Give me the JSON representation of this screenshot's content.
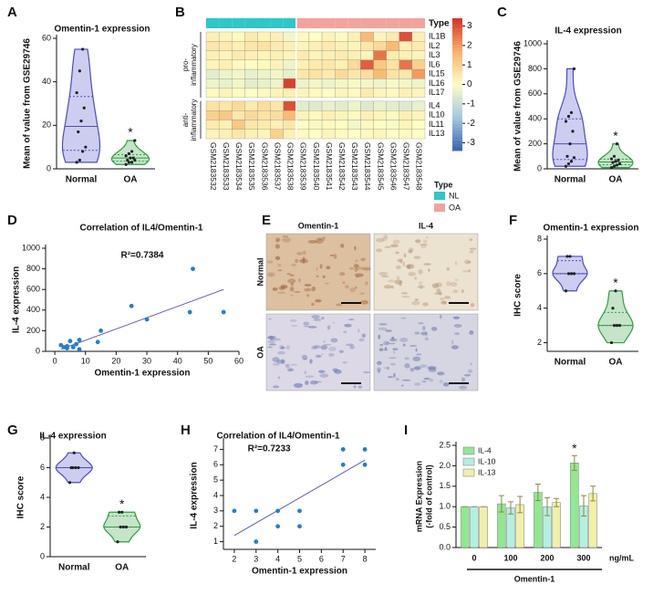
{
  "chart_data": [
    {
      "panel": "A",
      "type": "violin",
      "title": "Omentin-1 expression",
      "ylabel": "Mean of value from GSE29746",
      "categories": [
        "Normal",
        "OA"
      ],
      "values": [
        [
          3,
          4,
          8,
          10,
          17,
          22,
          28,
          35,
          45,
          55
        ],
        [
          2,
          3,
          3,
          4,
          4,
          5,
          5,
          6,
          7,
          8,
          13
        ]
      ],
      "colors": [
        "#4b4bc8",
        "#2e9e3e"
      ],
      "ylim": [
        0,
        60
      ],
      "yticks": [
        0,
        20,
        40,
        60
      ],
      "annotation": "*"
    },
    {
      "panel": "B",
      "type": "heatmap",
      "columns": [
        "GSM2183532",
        "GSM2183533",
        "GSM2183534",
        "GSM2183535",
        "GSM2183536",
        "GSM2183537",
        "GSM2183538",
        "GSM2183539",
        "GSM2183540",
        "GSM2183541",
        "GSM2183542",
        "GSM2183543",
        "GSM2183544",
        "GSM2183545",
        "GSM2183546",
        "GSM2183547",
        "GSM2183548"
      ],
      "col_groups": [
        "NL",
        "NL",
        "NL",
        "NL",
        "NL",
        "NL",
        "NL",
        "OA",
        "OA",
        "OA",
        "OA",
        "OA",
        "OA",
        "OA",
        "OA",
        "OA",
        "OA"
      ],
      "row_groups": [
        {
          "label": [
            "pro-",
            "inflammatory"
          ],
          "genes": [
            "IL1B",
            "IL2",
            "IL3",
            "IL6",
            "IL15",
            "IL16",
            "IL17"
          ]
        },
        {
          "label": [
            "anti-",
            "inflammatory"
          ],
          "genes": [
            "IL4",
            "IL10",
            "IL11",
            "IL13"
          ]
        }
      ],
      "values": [
        [
          0.3,
          0.2,
          0.1,
          0.4,
          0.2,
          0.3,
          -0.2,
          0.1,
          0.0,
          0.2,
          0.1,
          0.3,
          1.5,
          0.2,
          0.4,
          3.0,
          0.3
        ],
        [
          0.5,
          0.4,
          0.3,
          0.5,
          0.6,
          0.4,
          0.3,
          0.2,
          0.3,
          0.4,
          0.3,
          0.2,
          0.5,
          0.8,
          1.5,
          0.3,
          0.4
        ],
        [
          0.3,
          0.2,
          0.4,
          0.3,
          0.2,
          0.3,
          0.2,
          0.4,
          0.2,
          0.3,
          0.4,
          0.3,
          0.2,
          2.5,
          0.4,
          0.3,
          0.2
        ],
        [
          0.2,
          0.3,
          0.1,
          0.0,
          0.1,
          0.2,
          -0.3,
          0.3,
          0.4,
          0.5,
          0.3,
          0.8,
          2.8,
          1.2,
          0.6,
          2.5,
          1.0
        ],
        [
          -0.5,
          -0.3,
          -0.2,
          -0.4,
          -0.3,
          -0.2,
          -0.4,
          0.5,
          0.6,
          0.4,
          0.8,
          0.5,
          0.7,
          1.5,
          0.6,
          0.5,
          2.0
        ],
        [
          -0.3,
          -0.4,
          -0.2,
          -0.5,
          -0.4,
          -0.3,
          3.2,
          -0.3,
          -0.2,
          -0.3,
          -0.2,
          -0.1,
          -0.2,
          -0.3,
          -0.1,
          -0.2,
          -0.3
        ],
        [
          0.1,
          0.2,
          0.1,
          0.0,
          0.1,
          0.2,
          0.3,
          0.2,
          0.1,
          0.0,
          0.2,
          0.1,
          0.4,
          0.2,
          0.1,
          0.3,
          0.2
        ],
        [
          0.6,
          0.5,
          0.8,
          0.4,
          0.7,
          0.5,
          3.0,
          -0.5,
          -0.6,
          -0.4,
          -0.5,
          -0.3,
          -0.6,
          -0.4,
          -0.5,
          -0.6,
          -0.4
        ],
        [
          1.0,
          1.2,
          0.5,
          0.8,
          0.6,
          0.7,
          1.5,
          0.2,
          0.1,
          0.3,
          0.2,
          0.1,
          0.3,
          0.2,
          0.1,
          0.3,
          0.2
        ],
        [
          0.4,
          0.3,
          1.2,
          0.5,
          0.4,
          0.3,
          0.5,
          0.0,
          -0.1,
          0.1,
          0.0,
          -0.2,
          0.1,
          0.0,
          -0.1,
          0.2,
          0.0
        ],
        [
          0.2,
          0.3,
          0.5,
          0.3,
          0.2,
          1.0,
          0.3,
          0.1,
          0.0,
          0.2,
          0.1,
          0.0,
          0.1,
          0.2,
          0.0,
          0.1,
          0.0
        ]
      ],
      "legend_title": "Type",
      "legend": [
        {
          "name": "NL",
          "color": "#2ec8c8"
        },
        {
          "name": "OA",
          "color": "#f4a29c"
        }
      ],
      "colormap": [
        "#3b64ad",
        "#a5c8e0",
        "#fdfdc4",
        "#f7b267",
        "#d73027"
      ],
      "clim": [
        -3.4,
        3.4
      ],
      "colorbar_ticks": [
        3,
        2,
        1,
        0,
        -1,
        -2,
        -3
      ]
    },
    {
      "panel": "C",
      "type": "violin",
      "title": "IL-4 expression",
      "ylabel": "Mean of value from GSE29746",
      "categories": [
        "Normal",
        "OA"
      ],
      "values": [
        [
          20,
          40,
          60,
          90,
          100,
          200,
          300,
          380,
          420,
          450,
          800
        ],
        [
          10,
          20,
          30,
          40,
          50,
          60,
          70,
          80,
          100,
          200
        ]
      ],
      "colors": [
        "#4b4bc8",
        "#2e9e3e"
      ],
      "ylim": [
        0,
        1000
      ],
      "yticks": [
        0,
        200,
        400,
        600,
        800,
        1000
      ],
      "annotation": "*"
    },
    {
      "panel": "D",
      "type": "scatter",
      "title": "Correlation of IL4/Omentin-1",
      "annotation": "R²=0.7384",
      "xlabel": "Omentin-1 expression",
      "ylabel": "IL-4 expression",
      "color": "#1e7fd8",
      "x": [
        2,
        3,
        4,
        4,
        5,
        6,
        7,
        8,
        8,
        14,
        15,
        25,
        30,
        44,
        45,
        55
      ],
      "y": [
        60,
        40,
        30,
        50,
        100,
        40,
        70,
        20,
        110,
        90,
        200,
        440,
        310,
        380,
        800,
        380
      ],
      "trendline": {
        "x": [
          2,
          55
        ],
        "y": [
          20,
          600
        ],
        "color": "#5b5bb8"
      },
      "xlim": [
        -3,
        60
      ],
      "xticks": [
        0,
        10,
        20,
        30,
        40,
        50,
        60
      ],
      "ylim": [
        0,
        1000
      ],
      "yticks": [
        0,
        200,
        400,
        600,
        800,
        1000
      ]
    },
    {
      "panel": "E",
      "type": "image",
      "columns": [
        "Omentin-1",
        "IL-4"
      ],
      "rows": [
        "Normal",
        "OA"
      ]
    },
    {
      "panel": "F",
      "type": "violin",
      "title": "Omentin-1 expression",
      "ylabel": "IHC score",
      "categories": [
        "Normal",
        "OA"
      ],
      "values": [
        [
          5,
          6,
          6,
          6,
          7,
          7
        ],
        [
          2,
          3,
          3,
          3,
          4,
          5
        ]
      ],
      "colors": [
        "#4b4bc8",
        "#2e9e3e"
      ],
      "ylim": [
        1.5,
        8
      ],
      "yticks": [
        2,
        4,
        6,
        8
      ],
      "annotation": "*"
    },
    {
      "panel": "G",
      "type": "violin",
      "title": "IL-4 expression",
      "ylabel": "IHC score",
      "categories": [
        "Normal",
        "OA"
      ],
      "values": [
        [
          5,
          6,
          6,
          6,
          6,
          7
        ],
        [
          1,
          2,
          2,
          2,
          3,
          3
        ]
      ],
      "colors": [
        "#4b4bc8",
        "#2e9e3e"
      ],
      "ylim": [
        0,
        8
      ],
      "yticks": [
        0,
        2,
        4,
        6,
        8
      ],
      "annotation": "*"
    },
    {
      "panel": "H",
      "type": "scatter",
      "title": "Correlation of IL4/Omentin-1",
      "annotation": "R²=0.7233",
      "xlabel": "Omentin-1 expression",
      "ylabel": "IL-4 expression",
      "color": "#1e7fd8",
      "x": [
        2,
        3,
        3,
        4,
        4,
        5,
        5,
        7,
        7,
        8,
        8
      ],
      "y": [
        3,
        1,
        3,
        2,
        3,
        2,
        3,
        6,
        7,
        6,
        7
      ],
      "trendline": {
        "x": [
          2,
          8
        ],
        "y": [
          1.4,
          6.3
        ],
        "color": "#5b5bb8"
      },
      "xlim": [
        1.5,
        8.5
      ],
      "xticks": [
        2,
        3,
        4,
        5,
        6,
        7,
        8
      ],
      "ylim": [
        0.5,
        7.5
      ],
      "yticks": [
        1,
        2,
        3,
        4,
        5,
        6,
        7
      ]
    },
    {
      "panel": "I",
      "type": "bar",
      "ylabel": [
        "mRNA Expression",
        "(-fold of control)"
      ],
      "xlabel": "Omentin-1",
      "xunit": "ng/mL",
      "categories": [
        "0",
        "100",
        "200",
        "300"
      ],
      "series": [
        {
          "name": "IL-4",
          "color": "#90e890",
          "values": [
            1,
            1.07,
            1.35,
            2.07
          ],
          "errors": [
            0,
            0.2,
            0.2,
            0.18
          ]
        },
        {
          "name": "IL-10",
          "color": "#b2f0e2",
          "values": [
            1,
            0.97,
            1.0,
            1.02
          ],
          "errors": [
            0,
            0.15,
            0.22,
            0.25
          ]
        },
        {
          "name": "IL-13",
          "color": "#f0f0a8",
          "values": [
            1,
            1.05,
            1.1,
            1.32
          ],
          "errors": [
            0,
            0.2,
            0.1,
            0.18
          ]
        }
      ],
      "ylim": [
        0,
        2.5
      ],
      "yticks": [
        {
          "value": 0,
          "label": "0.0"
        },
        0.5,
        {
          "value": 1,
          "label": "1.0"
        },
        1.5,
        {
          "value": 2,
          "label": "2.0"
        },
        2.5
      ],
      "annotation": "*",
      "annotation_color": "#2e9e3e"
    }
  ]
}
